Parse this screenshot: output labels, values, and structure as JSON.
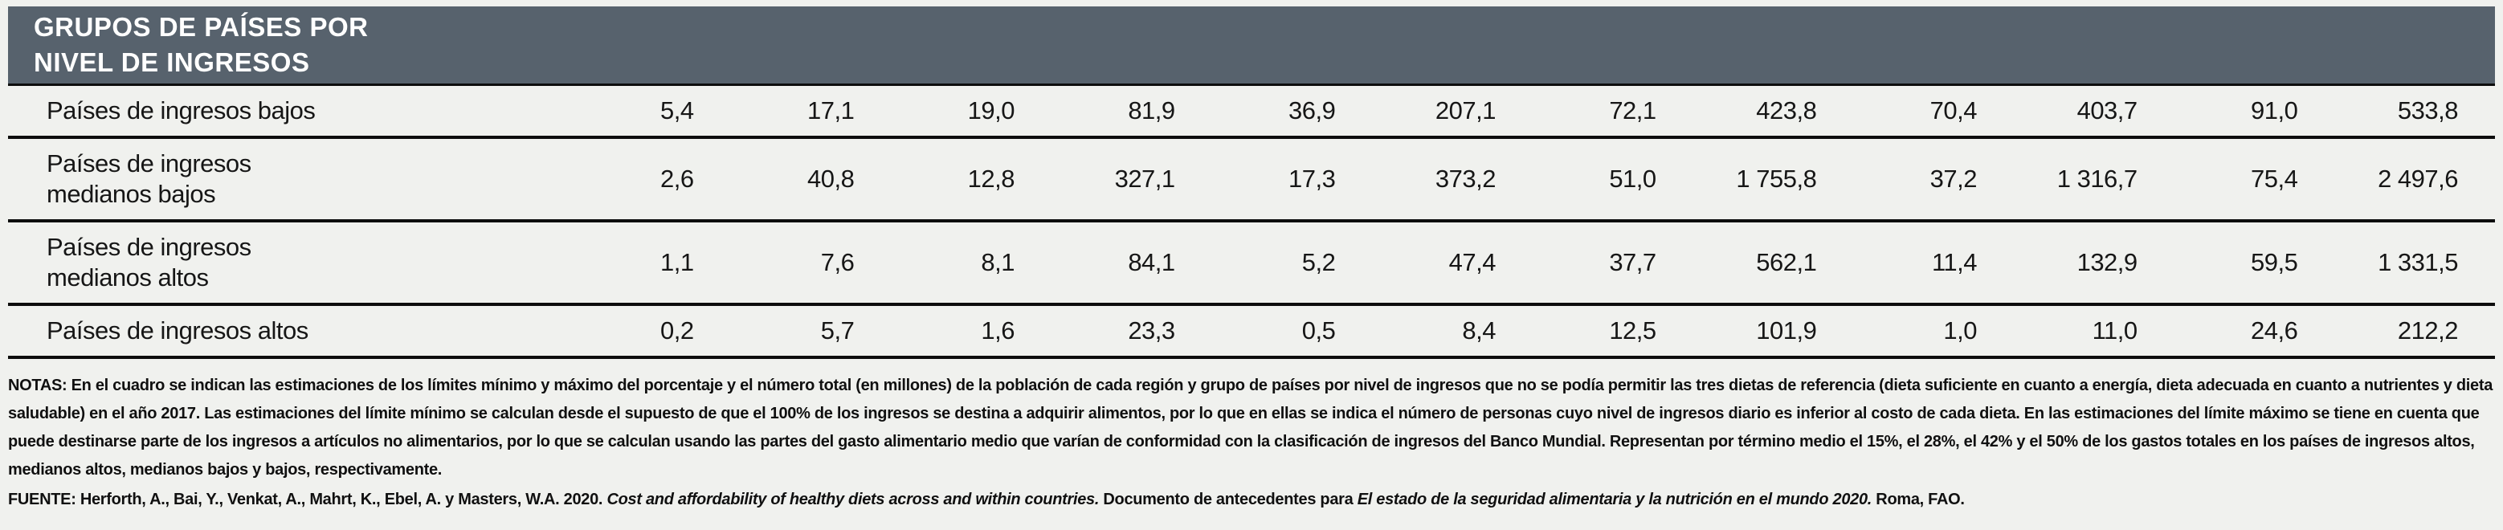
{
  "header": {
    "title": "GRUPOS DE PAÍSES POR\nNIVEL DE INGRESOS"
  },
  "table": {
    "rows": [
      {
        "label": "Países de ingresos bajos",
        "values": [
          "5,4",
          "17,1",
          "19,0",
          "81,9",
          "36,9",
          "207,1",
          "72,1",
          "423,8",
          "70,4",
          "403,7",
          "91,0",
          "533,8"
        ]
      },
      {
        "label": "Países de ingresos\nmedianos bajos",
        "values": [
          "2,6",
          "40,8",
          "12,8",
          "327,1",
          "17,3",
          "373,2",
          "51,0",
          "1 755,8",
          "37,2",
          "1 316,7",
          "75,4",
          "2 497,6"
        ]
      },
      {
        "label": "Países de ingresos\nmedianos altos",
        "values": [
          "1,1",
          "7,6",
          "8,1",
          "84,1",
          "5,2",
          "47,4",
          "37,7",
          "562,1",
          "11,4",
          "132,9",
          "59,5",
          "1 331,5"
        ]
      },
      {
        "label": "Países de ingresos altos",
        "values": [
          "0,2",
          "5,7",
          "1,6",
          "23,3",
          "0,5",
          "8,4",
          "12,5",
          "101,9",
          "1,0",
          "11,0",
          "24,6",
          "212,2"
        ]
      }
    ]
  },
  "notes": {
    "text": "NOTAS: En el cuadro se indican las estimaciones de los límites mínimo y máximo del porcentaje y el número total (en millones) de la población de cada región y grupo de países por nivel de ingresos que no se podía permitir las tres dietas de referencia (dieta suficiente en cuanto a energía, dieta adecuada en cuanto a nutrientes y dieta saludable) en el año 2017. Las estimaciones del límite mínimo se calculan desde el supuesto de que el 100% de los ingresos se destina a adquirir alimentos, por lo que en ellas se indica el número de personas cuyo nivel de ingresos diario es inferior al costo de cada dieta. En las estimaciones del límite máximo se tiene en cuenta que puede destinarse parte de los ingresos a artículos no alimentarios, por lo que se calculan usando las partes del gasto alimentario medio que varían de conformidad con la clasificación de ingresos del Banco Mundial. Representan por término medio el 15%, el 28%, el 42% y el 50% de los gastos totales en los países de ingresos altos, medianos altos, medianos bajos y bajos, respectivamente."
  },
  "source": {
    "prefix": "FUENTE: Herforth, A., Bai, Y., Venkat, A., Mahrt, K., Ebel, A. y Masters, W.A. 2020. ",
    "italic1": "Cost and affordability of healthy diets across and within countries.",
    "middle": " Documento de antecedentes para ",
    "italic2": "El estado de la seguridad alimentaria y la nutrición en el mundo 2020.",
    "suffix": " Roma, FAO."
  },
  "colors": {
    "band_background": "#57626d",
    "band_text": "#ffffff",
    "page_background": "#f0f1ee",
    "rule": "#0d0d0d"
  }
}
